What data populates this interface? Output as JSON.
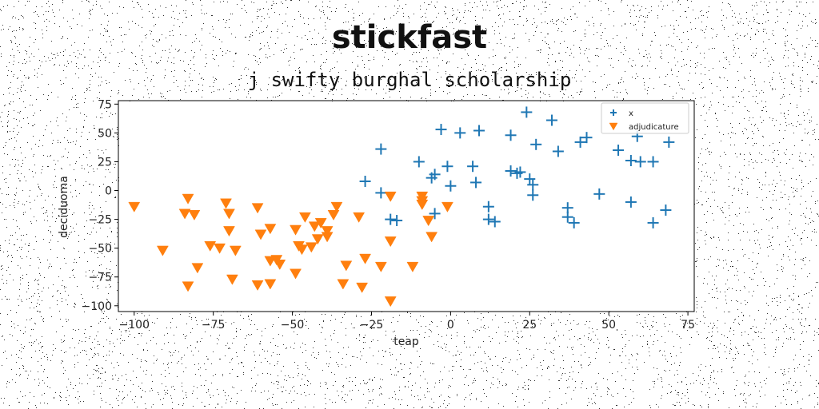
{
  "title": "stickfast",
  "subtitle": "j swifty burghal scholarship",
  "chart_data": {
    "type": "scatter",
    "xlabel": "teap",
    "ylabel": "deciduoma",
    "xlim": [
      -105,
      77
    ],
    "ylim": [
      -105,
      78
    ],
    "xticks": [
      -100,
      -75,
      -50,
      -25,
      0,
      25,
      50,
      75
    ],
    "yticks": [
      75,
      50,
      25,
      0,
      -25,
      -50,
      -75,
      -100
    ],
    "grid": false,
    "legend_position": "top-right",
    "series": [
      {
        "name": "x",
        "marker": "plus",
        "color": "#1f77b4",
        "points": [
          [
            24,
            68
          ],
          [
            32,
            61
          ],
          [
            19,
            48
          ],
          [
            9,
            52
          ],
          [
            3,
            50
          ],
          [
            -3,
            53
          ],
          [
            43,
            46
          ],
          [
            41,
            42
          ],
          [
            59,
            47
          ],
          [
            69,
            42
          ],
          [
            27,
            40
          ],
          [
            34,
            34
          ],
          [
            53,
            35
          ],
          [
            -22,
            36
          ],
          [
            -10,
            25
          ],
          [
            -1,
            21
          ],
          [
            7,
            21
          ],
          [
            19,
            17
          ],
          [
            21,
            15
          ],
          [
            22,
            16
          ],
          [
            57,
            26
          ],
          [
            60,
            25
          ],
          [
            64,
            25
          ],
          [
            -27,
            8
          ],
          [
            -6,
            11
          ],
          [
            -5,
            14
          ],
          [
            8,
            7
          ],
          [
            25,
            10
          ],
          [
            26,
            5
          ],
          [
            0,
            4
          ],
          [
            -22,
            -2
          ],
          [
            26,
            -4
          ],
          [
            47,
            -3
          ],
          [
            57,
            -10
          ],
          [
            -5,
            -20
          ],
          [
            12,
            -14
          ],
          [
            37,
            -15
          ],
          [
            37,
            -23
          ],
          [
            68,
            -17
          ],
          [
            -17,
            -26
          ],
          [
            -19,
            -25
          ],
          [
            12,
            -25
          ],
          [
            14,
            -27
          ],
          [
            39,
            -28
          ],
          [
            64,
            -28
          ]
        ]
      },
      {
        "name": "adjudicature",
        "marker": "triangle-down",
        "color": "#ff7f0e",
        "points": [
          [
            -100,
            -14
          ],
          [
            -83,
            -7
          ],
          [
            -84,
            -20
          ],
          [
            -81,
            -21
          ],
          [
            -71,
            -11
          ],
          [
            -70,
            -20
          ],
          [
            -70,
            -35
          ],
          [
            -61,
            -15
          ],
          [
            -60,
            -38
          ],
          [
            -57,
            -33
          ],
          [
            -49,
            -34
          ],
          [
            -46,
            -23
          ],
          [
            -41,
            -28
          ],
          [
            -39,
            -35
          ],
          [
            -37,
            -21
          ],
          [
            -36,
            -14
          ],
          [
            -29,
            -23
          ],
          [
            -19,
            -5
          ],
          [
            -9,
            -5
          ],
          [
            -9,
            -9
          ],
          [
            -9,
            -12
          ],
          [
            -1,
            -14
          ],
          [
            -7,
            -26
          ],
          [
            -19,
            -44
          ],
          [
            -6,
            -40
          ],
          [
            -43,
            -31
          ],
          [
            -91,
            -52
          ],
          [
            -76,
            -48
          ],
          [
            -73,
            -50
          ],
          [
            -68,
            -52
          ],
          [
            -80,
            -67
          ],
          [
            -47,
            -51
          ],
          [
            -44,
            -49
          ],
          [
            -57,
            -61
          ],
          [
            -55,
            -60
          ],
          [
            -54,
            -64
          ],
          [
            -27,
            -59
          ],
          [
            -33,
            -65
          ],
          [
            -22,
            -66
          ],
          [
            -12,
            -66
          ],
          [
            -83,
            -83
          ],
          [
            -69,
            -77
          ],
          [
            -61,
            -82
          ],
          [
            -57,
            -81
          ],
          [
            -49,
            -72
          ],
          [
            -34,
            -81
          ],
          [
            -28,
            -84
          ],
          [
            -19,
            -96
          ],
          [
            -39,
            -40
          ],
          [
            -42,
            -42
          ],
          [
            -48,
            -48
          ]
        ]
      }
    ]
  }
}
